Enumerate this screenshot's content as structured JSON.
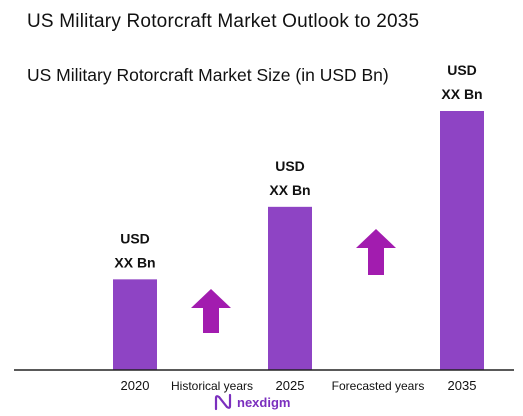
{
  "header": {
    "title": "US Military Rotorcraft Market Outlook to 2035",
    "subtitle": "US Military Rotorcraft Market Size (in USD Bn)"
  },
  "chart_data": {
    "type": "bar",
    "categories": [
      "2020",
      "2025",
      "2035"
    ],
    "values": [
      35,
      63,
      100
    ],
    "value_labels": [
      [
        "USD",
        "XX Bn"
      ],
      [
        "USD",
        "XX Bn"
      ],
      [
        "USD",
        "XX Bn"
      ]
    ],
    "ylim": [
      0,
      100
    ],
    "grid": false,
    "bar_color": "#8e44c4",
    "period_labels": [
      "Historical years",
      "Forecasted years"
    ],
    "growth_arrows": [
      {
        "between": [
          "2020",
          "2025"
        ],
        "direction": "up",
        "color": "#a21caf"
      },
      {
        "between": [
          "2025",
          "2035"
        ],
        "direction": "up",
        "color": "#a21caf"
      }
    ]
  },
  "branding": {
    "logo_name": "nexdigm",
    "logo_icon": "nexdigm-logo-icon",
    "logo_color": "#7b2fbe"
  }
}
